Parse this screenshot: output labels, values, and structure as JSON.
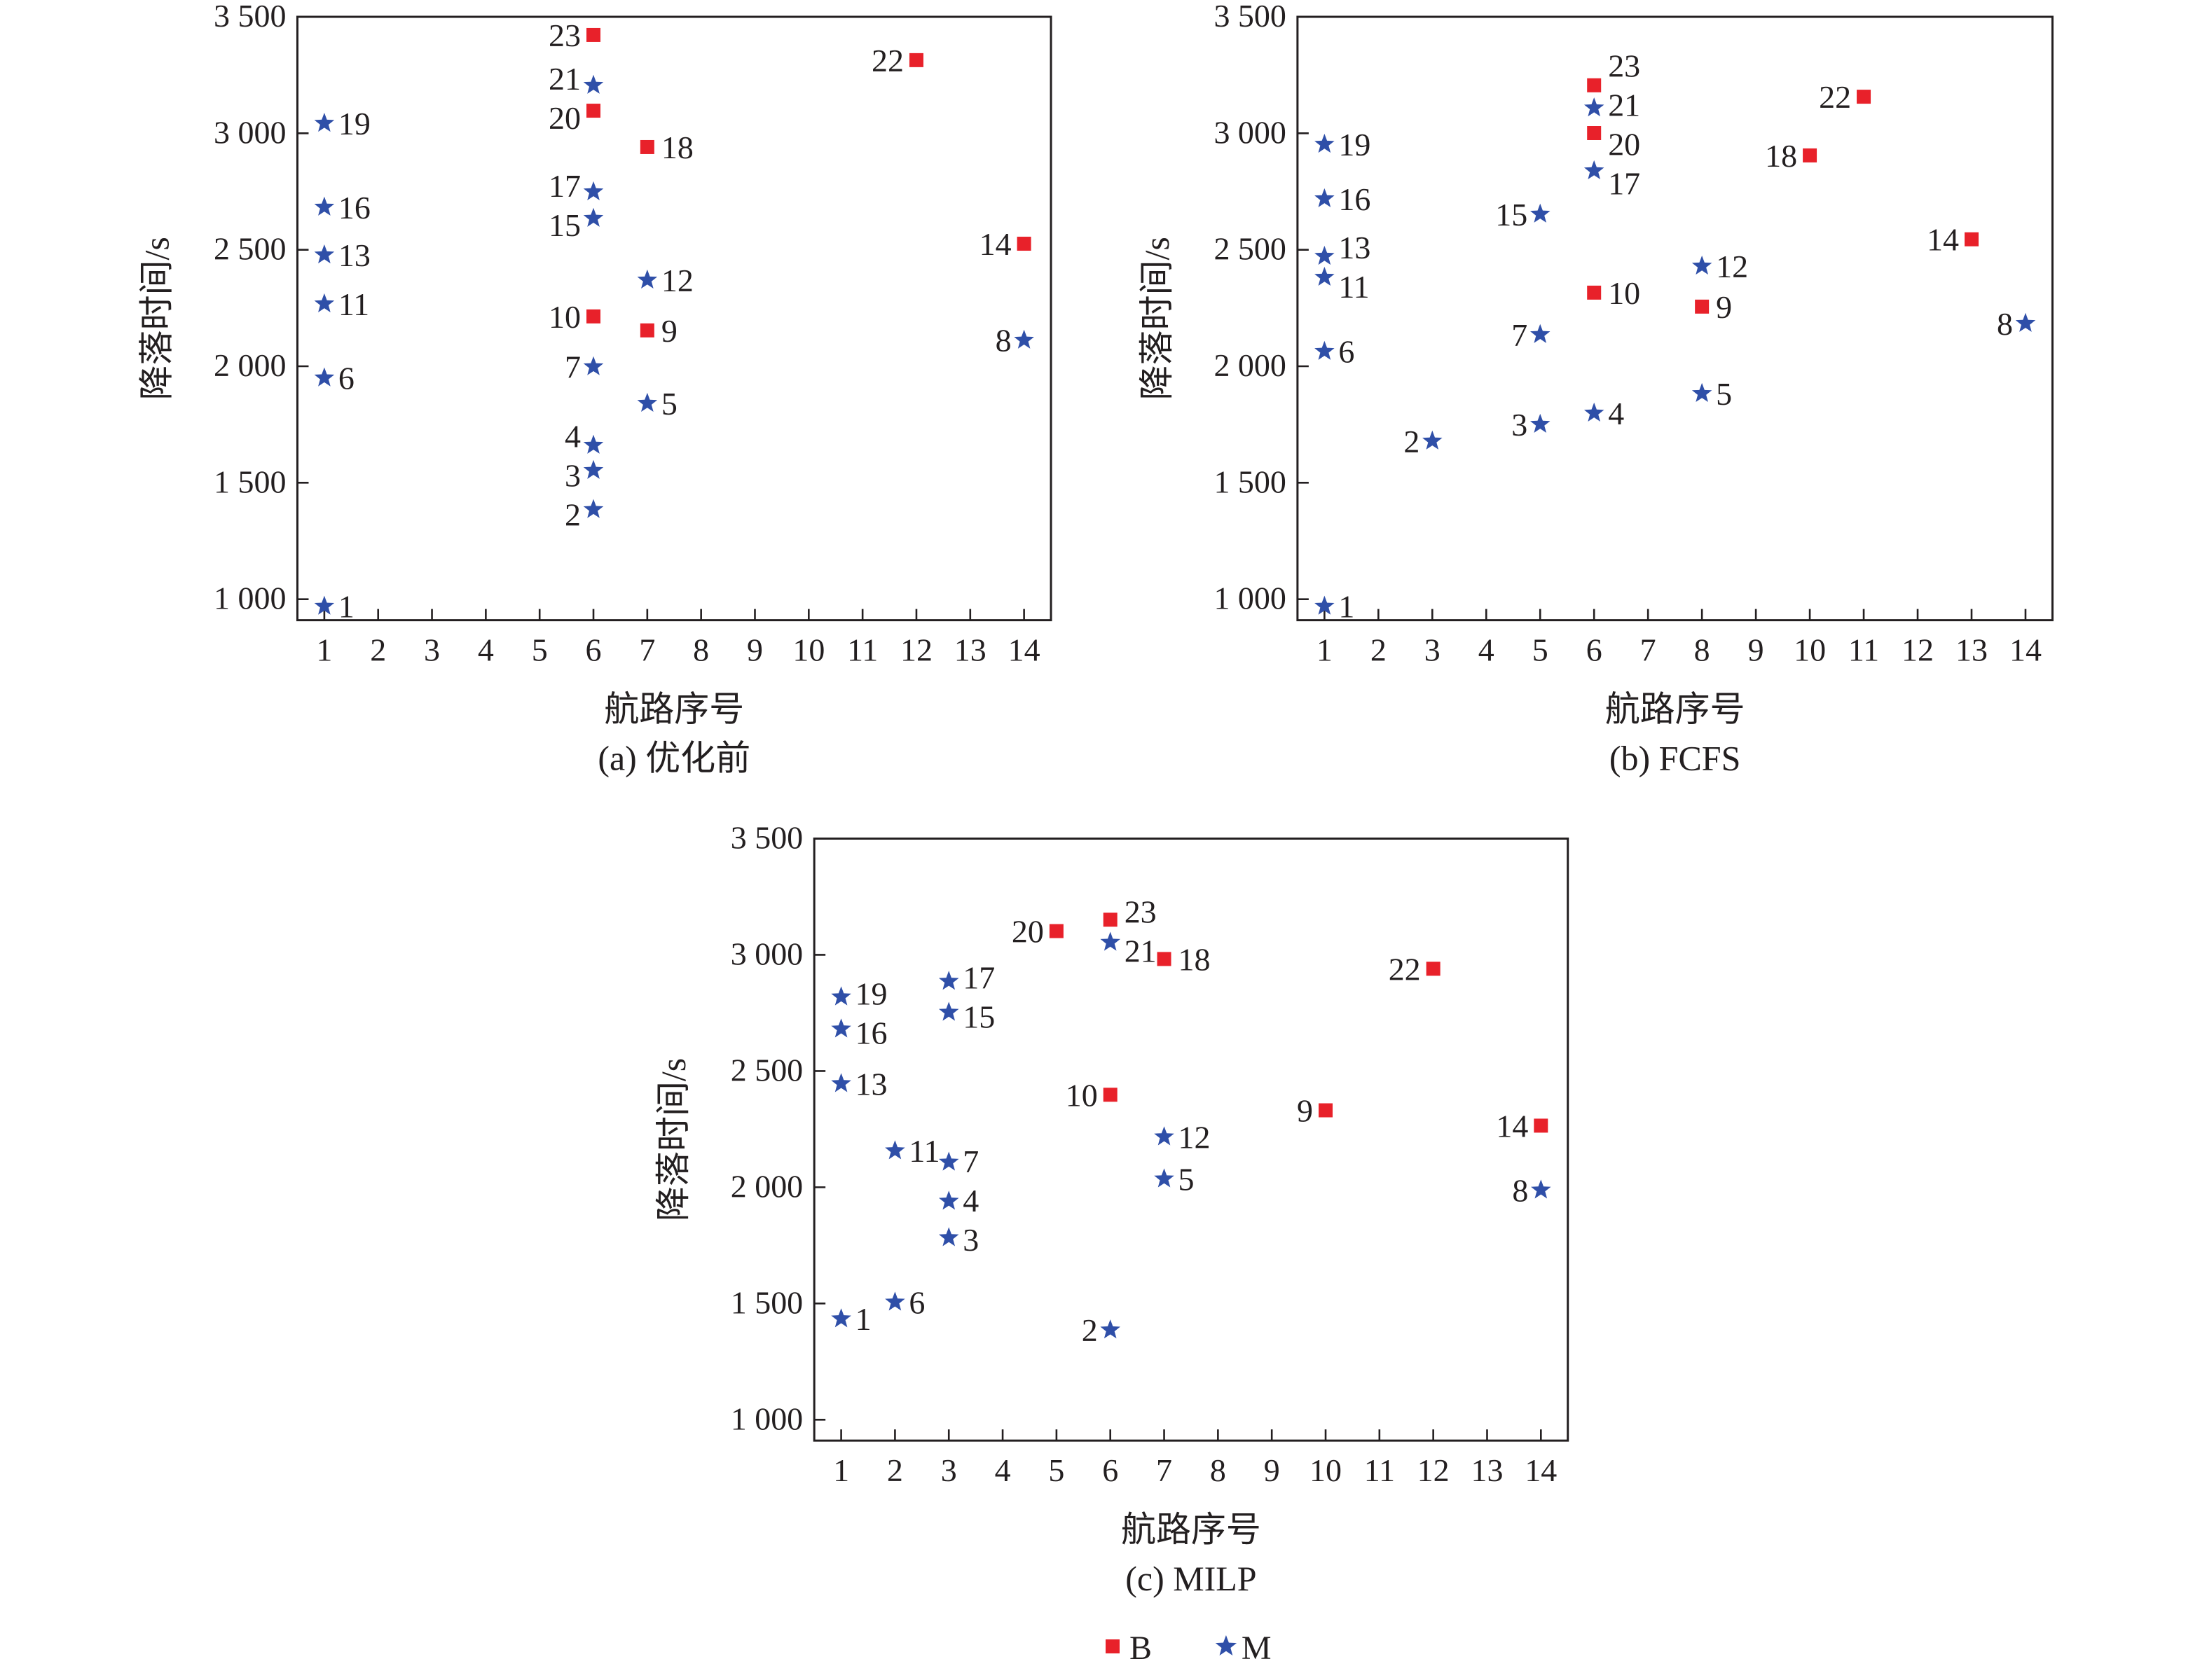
{
  "colors": {
    "B": "#e8212a",
    "M": "#2f4fa8",
    "axis": "#231f20"
  },
  "legend": {
    "placement": "bottom-center",
    "items": [
      {
        "key": "B",
        "label": "B",
        "marker": "square"
      },
      {
        "key": "M",
        "label": "M",
        "marker": "star"
      }
    ]
  },
  "chart_data": [
    {
      "type": "scatter",
      "title": "(a) 优化前",
      "xlabel": "航路序号",
      "ylabel": "降落时间/s",
      "xlim": [
        0.5,
        14.5
      ],
      "ylim": [
        910,
        3500
      ],
      "xticks": [
        1,
        2,
        3,
        4,
        5,
        6,
        7,
        8,
        9,
        10,
        11,
        12,
        13,
        14
      ],
      "yticks": [
        1000,
        1500,
        2000,
        2500,
        3000,
        3500
      ],
      "ytick_labels": [
        "1 000",
        "1 500",
        "2 000",
        "2 500",
        "3 000",
        "3 500"
      ],
      "grid": false,
      "points": [
        {
          "id": "1",
          "x": 1,
          "y": 970,
          "type": "M"
        },
        {
          "id": "19",
          "x": 1,
          "y": 3043,
          "type": "M"
        },
        {
          "id": "16",
          "x": 1,
          "y": 2683,
          "type": "M"
        },
        {
          "id": "13",
          "x": 1,
          "y": 2478,
          "type": "M"
        },
        {
          "id": "11",
          "x": 1,
          "y": 2268,
          "type": "M"
        },
        {
          "id": "6",
          "x": 1,
          "y": 1950,
          "type": "M"
        },
        {
          "id": "23",
          "x": 6,
          "y": 3422,
          "type": "B"
        },
        {
          "id": "21",
          "x": 6,
          "y": 3206,
          "type": "M"
        },
        {
          "id": "20",
          "x": 6,
          "y": 3097,
          "type": "B"
        },
        {
          "id": "17",
          "x": 6,
          "y": 2749,
          "type": "M"
        },
        {
          "id": "15",
          "x": 6,
          "y": 2635,
          "type": "M"
        },
        {
          "id": "10",
          "x": 6,
          "y": 2214,
          "type": "B"
        },
        {
          "id": "7",
          "x": 6,
          "y": 1998,
          "type": "M"
        },
        {
          "id": "4",
          "x": 6,
          "y": 1661,
          "type": "M"
        },
        {
          "id": "3",
          "x": 6,
          "y": 1553,
          "type": "M"
        },
        {
          "id": "2",
          "x": 6,
          "y": 1385,
          "type": "M"
        },
        {
          "id": "18",
          "x": 7,
          "y": 2941,
          "type": "B"
        },
        {
          "id": "12",
          "x": 7,
          "y": 2370,
          "type": "M"
        },
        {
          "id": "9",
          "x": 7,
          "y": 2154,
          "type": "B"
        },
        {
          "id": "5",
          "x": 7,
          "y": 1841,
          "type": "M"
        },
        {
          "id": "22",
          "x": 12,
          "y": 3314,
          "type": "B"
        },
        {
          "id": "14",
          "x": 14,
          "y": 2526,
          "type": "B"
        },
        {
          "id": "8",
          "x": 14,
          "y": 2112,
          "type": "M"
        }
      ]
    },
    {
      "type": "scatter",
      "title": "(b) FCFS",
      "xlabel": "航路序号",
      "ylabel": "降落时间/s",
      "xlim": [
        0.5,
        14.5
      ],
      "ylim": [
        910,
        3500
      ],
      "xticks": [
        1,
        2,
        3,
        4,
        5,
        6,
        7,
        8,
        9,
        10,
        11,
        12,
        13,
        14
      ],
      "yticks": [
        1000,
        1500,
        2000,
        2500,
        3000,
        3500
      ],
      "ytick_labels": [
        "1 000",
        "1 500",
        "2 000",
        "2 500",
        "3 000",
        "3 500"
      ],
      "grid": false,
      "points": [
        {
          "id": "1",
          "x": 1,
          "y": 970,
          "type": "M"
        },
        {
          "id": "19",
          "x": 1,
          "y": 2953,
          "type": "M"
        },
        {
          "id": "16",
          "x": 1,
          "y": 2719,
          "type": "M"
        },
        {
          "id": "13",
          "x": 1,
          "y": 2472,
          "type": "M"
        },
        {
          "id": "11",
          "x": 1,
          "y": 2382,
          "type": "M"
        },
        {
          "id": "6",
          "x": 1,
          "y": 2064,
          "type": "M"
        },
        {
          "id": "2",
          "x": 3,
          "y": 1679,
          "type": "M"
        },
        {
          "id": "15",
          "x": 5,
          "y": 2653,
          "type": "M"
        },
        {
          "id": "7",
          "x": 5,
          "y": 2136,
          "type": "M"
        },
        {
          "id": "3",
          "x": 5,
          "y": 1751,
          "type": "M"
        },
        {
          "id": "23",
          "x": 6,
          "y": 3206,
          "type": "B"
        },
        {
          "id": "21",
          "x": 6,
          "y": 3109,
          "type": "M"
        },
        {
          "id": "20",
          "x": 6,
          "y": 3001,
          "type": "B"
        },
        {
          "id": "17",
          "x": 6,
          "y": 2839,
          "type": "M"
        },
        {
          "id": "10",
          "x": 6,
          "y": 2316,
          "type": "B"
        },
        {
          "id": "4",
          "x": 6,
          "y": 1799,
          "type": "M"
        },
        {
          "id": "12",
          "x": 8,
          "y": 2430,
          "type": "M"
        },
        {
          "id": "9",
          "x": 8,
          "y": 2256,
          "type": "B"
        },
        {
          "id": "5",
          "x": 8,
          "y": 1883,
          "type": "M"
        },
        {
          "id": "18",
          "x": 10,
          "y": 2905,
          "type": "B"
        },
        {
          "id": "22",
          "x": 11,
          "y": 3157,
          "type": "B"
        },
        {
          "id": "14",
          "x": 13,
          "y": 2545,
          "type": "B"
        },
        {
          "id": "8",
          "x": 14,
          "y": 2184,
          "type": "M"
        }
      ]
    },
    {
      "type": "scatter",
      "title": "(c) MILP",
      "xlabel": "航路序号",
      "ylabel": "降落时间/s",
      "xlim": [
        0.5,
        14.5
      ],
      "ylim": [
        910,
        3500
      ],
      "xticks": [
        1,
        2,
        3,
        4,
        5,
        6,
        7,
        8,
        9,
        10,
        11,
        12,
        13,
        14
      ],
      "yticks": [
        1000,
        1500,
        2000,
        2500,
        3000,
        3500
      ],
      "ytick_labels": [
        "1 000",
        "1 500",
        "2 000",
        "2 500",
        "3 000",
        "3 500"
      ],
      "grid": false,
      "points": [
        {
          "id": "19",
          "x": 1,
          "y": 2819,
          "type": "M"
        },
        {
          "id": "16",
          "x": 1,
          "y": 2681,
          "type": "M"
        },
        {
          "id": "13",
          "x": 1,
          "y": 2446,
          "type": "M"
        },
        {
          "id": "1",
          "x": 1,
          "y": 1434,
          "type": "M"
        },
        {
          "id": "11",
          "x": 2,
          "y": 2157,
          "type": "M"
        },
        {
          "id": "6",
          "x": 2,
          "y": 1506,
          "type": "M"
        },
        {
          "id": "17",
          "x": 3,
          "y": 2886,
          "type": "M"
        },
        {
          "id": "15",
          "x": 3,
          "y": 2753,
          "type": "M"
        },
        {
          "id": "7",
          "x": 3,
          "y": 2108,
          "type": "M"
        },
        {
          "id": "4",
          "x": 3,
          "y": 1940,
          "type": "M"
        },
        {
          "id": "3",
          "x": 3,
          "y": 1783,
          "type": "M"
        },
        {
          "id": "20",
          "x": 5,
          "y": 3102,
          "type": "B"
        },
        {
          "id": "23",
          "x": 6,
          "y": 3151,
          "type": "B"
        },
        {
          "id": "21",
          "x": 6,
          "y": 3054,
          "type": "M"
        },
        {
          "id": "10",
          "x": 6,
          "y": 2398,
          "type": "B"
        },
        {
          "id": "2",
          "x": 6,
          "y": 1386,
          "type": "M"
        },
        {
          "id": "18",
          "x": 7,
          "y": 2982,
          "type": "B"
        },
        {
          "id": "12",
          "x": 7,
          "y": 2217,
          "type": "M"
        },
        {
          "id": "5",
          "x": 7,
          "y": 2036,
          "type": "M"
        },
        {
          "id": "9",
          "x": 10,
          "y": 2331,
          "type": "B"
        },
        {
          "id": "22",
          "x": 12,
          "y": 2940,
          "type": "B"
        },
        {
          "id": "14",
          "x": 14,
          "y": 2265,
          "type": "B"
        },
        {
          "id": "8",
          "x": 14,
          "y": 1988,
          "type": "M"
        }
      ]
    }
  ]
}
